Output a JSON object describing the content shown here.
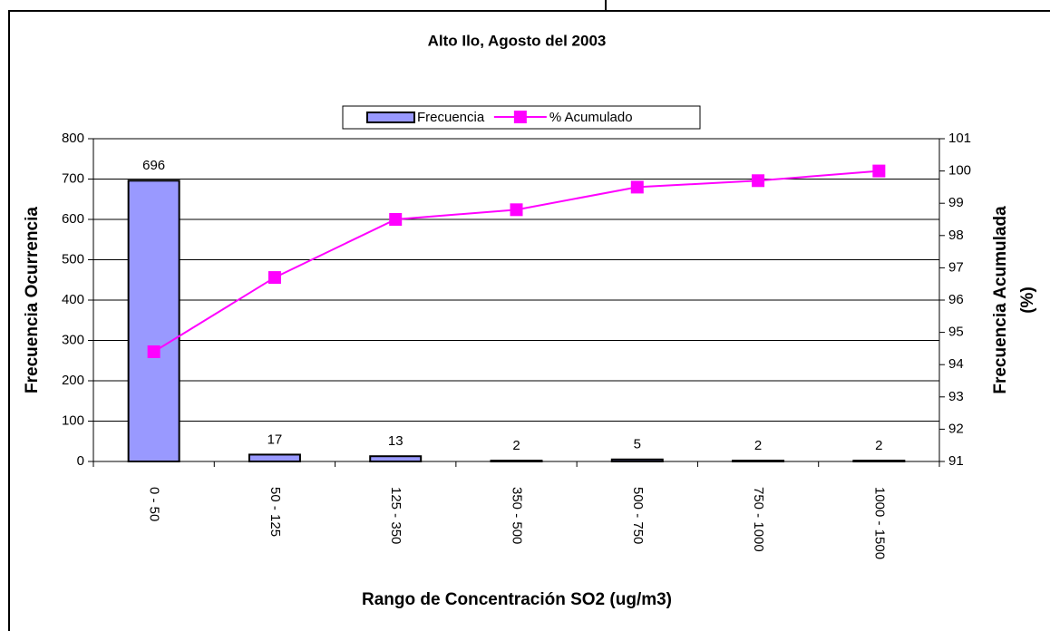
{
  "chart_data": {
    "type": "bar_line",
    "title": "Alto Ilo, Agosto del 2003",
    "x_label": "Rango de Concentración SO2 (ug/m3)",
    "y_label": "Frecuencia Ocurrencia",
    "y2_label": [
      "Frecuencia Acumulada",
      "(%)"
    ],
    "categories": [
      "0 - 50",
      "50 - 125",
      "125 - 350",
      "350 - 500",
      "500 - 750",
      "750 - 1000",
      "1000 - 1500"
    ],
    "series": [
      {
        "name": "Frecuencia",
        "type": "bar",
        "color": "#9999ff",
        "values": [
          696,
          17,
          13,
          2,
          5,
          2,
          2
        ]
      },
      {
        "name": "% Acumulado",
        "type": "line",
        "axis": "y2",
        "color": "#ff00ff",
        "values": [
          94.4,
          96.7,
          98.5,
          98.8,
          99.5,
          99.7,
          100
        ]
      }
    ],
    "ylim": [
      0,
      800
    ],
    "yticks": [
      0,
      100,
      200,
      300,
      400,
      500,
      600,
      700,
      800
    ],
    "y2lim": [
      91,
      101
    ],
    "y2ticks": [
      91,
      92,
      93,
      94,
      95,
      96,
      97,
      98,
      99,
      100,
      101
    ],
    "grid": true,
    "legend": "top"
  }
}
